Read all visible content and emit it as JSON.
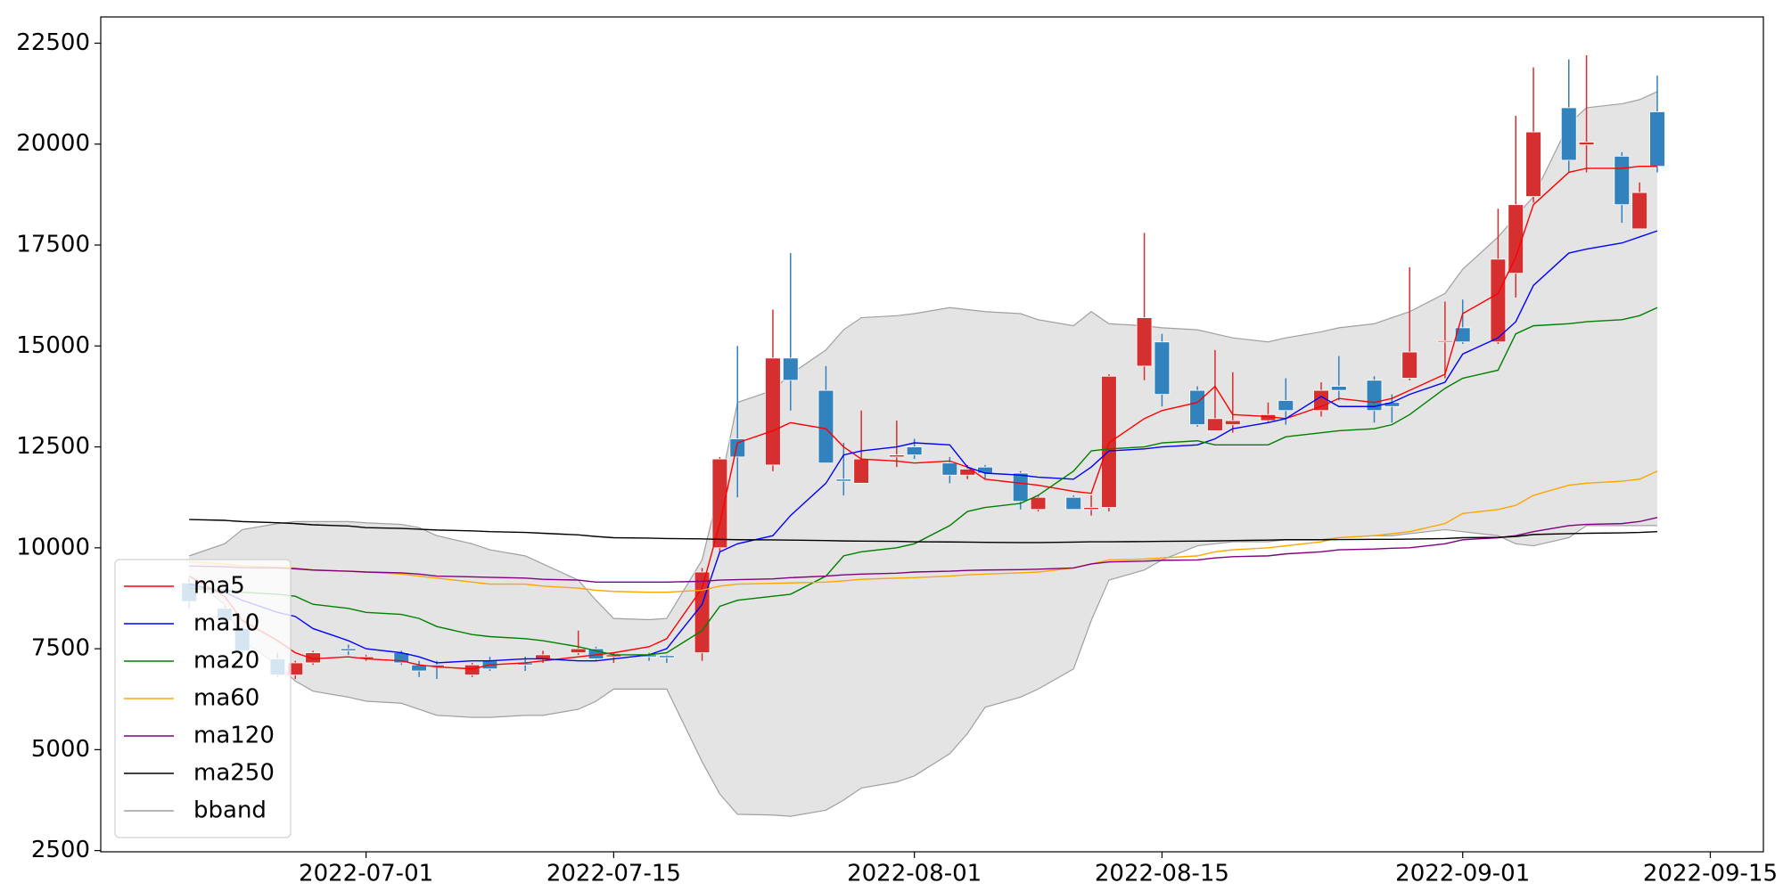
{
  "chart_data": {
    "type": "candlestick",
    "x": [
      "2022-06-21",
      "2022-06-23",
      "2022-06-24",
      "2022-06-26",
      "2022-06-27",
      "2022-06-28",
      "2022-06-30",
      "2022-07-01",
      "2022-07-03",
      "2022-07-04",
      "2022-07-05",
      "2022-07-07",
      "2022-07-08",
      "2022-07-10",
      "2022-07-11",
      "2022-07-13",
      "2022-07-14",
      "2022-07-15",
      "2022-07-17",
      "2022-07-18",
      "2022-07-20",
      "2022-07-21",
      "2022-07-22",
      "2022-07-24",
      "2022-07-25",
      "2022-07-27",
      "2022-07-28",
      "2022-07-29",
      "2022-07-31",
      "2022-08-01",
      "2022-08-03",
      "2022-08-04",
      "2022-08-05",
      "2022-08-07",
      "2022-08-08",
      "2022-08-10",
      "2022-08-11",
      "2022-08-12",
      "2022-08-14",
      "2022-08-15",
      "2022-08-17",
      "2022-08-18",
      "2022-08-19",
      "2022-08-21",
      "2022-08-22",
      "2022-08-24",
      "2022-08-25",
      "2022-08-27",
      "2022-08-28",
      "2022-08-29",
      "2022-08-31",
      "2022-09-01",
      "2022-09-03",
      "2022-09-04",
      "2022-09-05",
      "2022-09-07",
      "2022-09-08",
      "2022-09-10",
      "2022-09-11",
      "2022-09-12"
    ],
    "ohlc": {
      "up_color": "#d62f30",
      "down_color": "#3182bd",
      "open": [
        9130,
        8500,
        8000,
        7250,
        6850,
        7150,
        7500,
        7250,
        7400,
        7100,
        7100,
        6850,
        7200,
        7150,
        7250,
        7400,
        7500,
        7300,
        7350,
        7330,
        7400,
        10000,
        12700,
        12050,
        14700,
        13900,
        11700,
        11600,
        12250,
        12500,
        12100,
        11800,
        12000,
        11850,
        10950,
        11250,
        10950,
        11000,
        14500,
        15100,
        13900,
        12900,
        13050,
        13150,
        13650,
        13400,
        14000,
        14150,
        13600,
        14200,
        15100,
        15450,
        15100,
        16800,
        18700,
        20900,
        19980,
        19700,
        17900,
        20800
      ],
      "high": [
        9250,
        8550,
        8050,
        7400,
        7200,
        7450,
        7600,
        7350,
        7450,
        7200,
        7200,
        7150,
        7300,
        7300,
        7450,
        7950,
        7550,
        7400,
        7400,
        7350,
        9500,
        12250,
        15000,
        15900,
        17300,
        14500,
        12600,
        13400,
        13150,
        12700,
        12250,
        12050,
        12050,
        11900,
        11300,
        11300,
        11300,
        14300,
        17800,
        15300,
        14000,
        14900,
        14350,
        13600,
        14200,
        14100,
        14750,
        14250,
        13800,
        16950,
        16100,
        16150,
        18400,
        20700,
        21900,
        22100,
        22200,
        19800,
        19050,
        21700
      ],
      "low": [
        8500,
        8150,
        7400,
        6800,
        6750,
        7100,
        7350,
        7200,
        7100,
        6800,
        6750,
        6800,
        6950,
        6950,
        7150,
        7350,
        7200,
        7150,
        7200,
        7150,
        7200,
        9900,
        11250,
        11900,
        13400,
        12100,
        11300,
        11600,
        12000,
        12200,
        11600,
        11700,
        11700,
        10950,
        10900,
        10950,
        10800,
        10900,
        14150,
        13500,
        13000,
        12900,
        12850,
        13100,
        13050,
        13250,
        13650,
        13100,
        13100,
        14150,
        14200,
        15050,
        15050,
        16200,
        18550,
        19300,
        19300,
        18050,
        17900,
        19300
      ],
      "close": [
        8670,
        8200,
        7450,
        6850,
        7150,
        7400,
        7450,
        7300,
        7150,
        6950,
        7050,
        7100,
        7000,
        7100,
        7350,
        7500,
        7250,
        7350,
        7300,
        7280,
        9400,
        12200,
        12250,
        14700,
        14150,
        12100,
        11650,
        12200,
        12300,
        12300,
        11800,
        11950,
        11850,
        11150,
        11250,
        10950,
        11000,
        14250,
        15700,
        13800,
        13050,
        13200,
        13150,
        13300,
        13400,
        13900,
        13900,
        13400,
        13500,
        14850,
        15130,
        15100,
        17150,
        18500,
        20300,
        19600,
        20050,
        18500,
        18800,
        19450
      ]
    },
    "series": [
      {
        "name": "ma5",
        "color": "#ff0000",
        "values": [
          9300,
          8800,
          8200,
          7700,
          7400,
          7250,
          7300,
          7250,
          7200,
          7100,
          7050,
          7000,
          7100,
          7150,
          7200,
          7300,
          7350,
          7400,
          7550,
          7750,
          9000,
          10600,
          12600,
          12900,
          13100,
          12950,
          12500,
          12200,
          12150,
          12100,
          12150,
          12000,
          11700,
          11600,
          11550,
          11400,
          11350,
          12600,
          13200,
          13400,
          13600,
          14000,
          13300,
          13250,
          13200,
          13500,
          13700,
          13600,
          13700,
          13900,
          14300,
          15800,
          16300,
          17200,
          18500,
          19300,
          19400,
          19400,
          19450,
          19450
        ]
      },
      {
        "name": "ma10",
        "color": "#0000ff",
        "values": [
          9100,
          8900,
          8700,
          8400,
          8300,
          8000,
          7700,
          7500,
          7400,
          7300,
          7150,
          7200,
          7200,
          7250,
          7250,
          7200,
          7200,
          7250,
          7350,
          7500,
          8600,
          9900,
          10100,
          10300,
          10800,
          11600,
          12300,
          12400,
          12500,
          12600,
          12550,
          12000,
          11850,
          11800,
          11750,
          11700,
          12000,
          12400,
          12450,
          12500,
          12550,
          12700,
          12950,
          13100,
          13200,
          13750,
          13500,
          13500,
          13600,
          13800,
          14100,
          14800,
          15200,
          15600,
          16500,
          17300,
          17400,
          17550,
          17700,
          17850
        ]
      },
      {
        "name": "ma20",
        "color": "#008000",
        "values": [
          9000,
          8950,
          8900,
          8850,
          8800,
          8600,
          8500,
          8400,
          8350,
          8250,
          8050,
          7850,
          7800,
          7750,
          7700,
          7550,
          7450,
          7350,
          7350,
          7400,
          7950,
          8550,
          8700,
          8800,
          8850,
          9300,
          9800,
          9900,
          10000,
          10100,
          10550,
          10900,
          11000,
          11100,
          11300,
          11900,
          12400,
          12450,
          12500,
          12600,
          12650,
          12550,
          12550,
          12550,
          12750,
          12850,
          12900,
          12950,
          13050,
          13300,
          13950,
          14200,
          14400,
          15300,
          15500,
          15550,
          15600,
          15650,
          15750,
          15950
        ]
      },
      {
        "name": "ma60",
        "color": "#ffa500",
        "values": [
          9650,
          9600,
          9550,
          9520,
          9500,
          9450,
          9420,
          9400,
          9350,
          9300,
          9250,
          9150,
          9100,
          9100,
          9050,
          9000,
          8950,
          8920,
          8900,
          8900,
          8950,
          9050,
          9100,
          9120,
          9130,
          9150,
          9180,
          9220,
          9250,
          9260,
          9300,
          9330,
          9350,
          9380,
          9400,
          9500,
          9600,
          9700,
          9720,
          9750,
          9800,
          9900,
          9950,
          10000,
          10050,
          10150,
          10250,
          10300,
          10350,
          10400,
          10600,
          10850,
          10950,
          11050,
          11300,
          11550,
          11600,
          11650,
          11700,
          11900
        ]
      },
      {
        "name": "ma120",
        "color": "#800080",
        "values": [
          9550,
          9530,
          9510,
          9500,
          9480,
          9450,
          9420,
          9400,
          9380,
          9350,
          9300,
          9280,
          9270,
          9250,
          9220,
          9200,
          9150,
          9150,
          9150,
          9150,
          9170,
          9200,
          9210,
          9230,
          9260,
          9300,
          9330,
          9350,
          9370,
          9400,
          9420,
          9440,
          9450,
          9460,
          9470,
          9500,
          9600,
          9650,
          9670,
          9690,
          9700,
          9750,
          9780,
          9800,
          9850,
          9900,
          9950,
          9970,
          9990,
          10000,
          10100,
          10200,
          10250,
          10300,
          10400,
          10550,
          10580,
          10600,
          10650,
          10750
        ]
      },
      {
        "name": "ma250",
        "color": "#000000",
        "values": [
          10700,
          10680,
          10650,
          10620,
          10600,
          10570,
          10540,
          10500,
          10480,
          10460,
          10440,
          10420,
          10400,
          10380,
          10360,
          10320,
          10280,
          10250,
          10240,
          10230,
          10220,
          10210,
          10200,
          10195,
          10190,
          10180,
          10170,
          10165,
          10160,
          10150,
          10145,
          10140,
          10135,
          10130,
          10130,
          10140,
          10150,
          10150,
          10155,
          10160,
          10165,
          10170,
          10180,
          10190,
          10200,
          10200,
          10205,
          10210,
          10210,
          10215,
          10230,
          10250,
          10260,
          10280,
          10330,
          10350,
          10360,
          10370,
          10380,
          10400
        ]
      },
      {
        "name": "bband",
        "color": "#a0a0a0",
        "fill": "#e4e4e4",
        "upper": [
          9800,
          10100,
          10450,
          10600,
          10650,
          10650,
          10650,
          10620,
          10580,
          10500,
          10300,
          10100,
          9950,
          9800,
          9600,
          9200,
          8700,
          8250,
          8220,
          8250,
          9700,
          11500,
          13600,
          13900,
          14300,
          14900,
          15400,
          15700,
          15750,
          15800,
          15950,
          15900,
          15850,
          15800,
          15650,
          15500,
          15850,
          15550,
          15500,
          15450,
          15400,
          15300,
          15200,
          15100,
          15200,
          15350,
          15450,
          15550,
          15700,
          15850,
          16300,
          16900,
          17700,
          18200,
          18700,
          20500,
          20900,
          21000,
          21100,
          21300
        ],
        "lower": [
          9300,
          8600,
          7700,
          7100,
          6700,
          6450,
          6300,
          6200,
          6150,
          6000,
          5850,
          5800,
          5800,
          5850,
          5850,
          6000,
          6200,
          6500,
          6500,
          6500,
          4700,
          3900,
          3400,
          3380,
          3350,
          3500,
          3750,
          4050,
          4200,
          4350,
          4900,
          5400,
          6050,
          6300,
          6500,
          7000,
          8200,
          9200,
          9450,
          9700,
          10050,
          10100,
          10150,
          10150,
          10200,
          10200,
          10250,
          10300,
          10300,
          10350,
          10450,
          10400,
          10300,
          10100,
          10050,
          10250,
          10550,
          10550,
          10550,
          10550
        ]
      }
    ],
    "xlim": [
      "2022-06-16",
      "2022-09-18"
    ],
    "xticks": [
      "2022-07-01",
      "2022-07-15",
      "2022-08-01",
      "2022-08-15",
      "2022-09-01",
      "2022-09-15"
    ],
    "ylim": [
      2470,
      23150
    ],
    "yticks": [
      2500,
      5000,
      7500,
      10000,
      12500,
      15000,
      17500,
      20000,
      22500
    ],
    "legend": "lower left"
  }
}
